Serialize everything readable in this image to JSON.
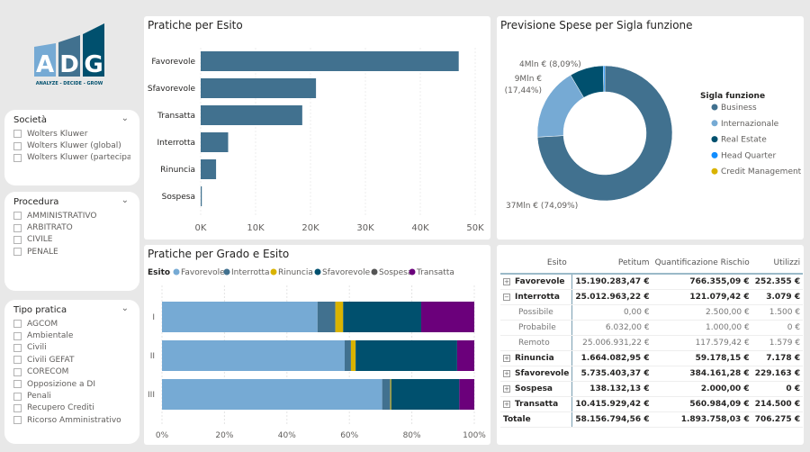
{
  "logo": {
    "letters": [
      "A",
      "D",
      "G"
    ],
    "tagline": "ANALYZE - DECIDE - GROW"
  },
  "slicers": [
    {
      "title": "Società",
      "options": [
        "Wolters Kluwer",
        "Wolters Kluwer (global)",
        "Wolters Kluwer (partecipat..."
      ]
    },
    {
      "title": "Procedura",
      "options": [
        "AMMINISTRATIVO",
        "ARBITRATO",
        "CIVILE",
        "PENALE"
      ]
    },
    {
      "title": "Tipo pratica",
      "options": [
        "AGCOM",
        "Ambientale",
        "Civili",
        "Civili GEFAT",
        "CORECOM",
        "Opposizione a DI",
        "Penali",
        "Recupero Crediti",
        "Ricorso Amministrativo"
      ]
    }
  ],
  "colors": {
    "bar": "#41718f",
    "favorevole": "#76aad4",
    "interrotta": "#41718f",
    "rinuncia": "#d9b300",
    "sfavorevole": "#00506e",
    "sospesa": "#555555",
    "transatta": "#6b007b",
    "business": "#41718f",
    "internazionale": "#76aad4",
    "real_estate": "#00506e",
    "head_quarter": "#118dff",
    "credit_management": "#d9b300"
  },
  "chart_data": [
    {
      "type": "bar",
      "title": "Pratiche per Esito",
      "orientation": "horizontal",
      "categories": [
        "Favorevole",
        "Sfavorevole",
        "Transatta",
        "Interrotta",
        "Rinuncia",
        "Sospesa"
      ],
      "values": [
        47000,
        21000,
        18500,
        5000,
        2800,
        200
      ],
      "xlim": [
        0,
        50000
      ],
      "xticks": [
        "0K",
        "10K",
        "20K",
        "30K",
        "40K",
        "50K"
      ]
    },
    {
      "type": "pie",
      "title": "Previsione Spese per Sigla funzione",
      "donut": true,
      "legend_title": "Sigla funzione",
      "legend": "right",
      "slices": [
        {
          "name": "Business",
          "value": 74.09,
          "label": "37Mln € (74,09%)"
        },
        {
          "name": "Internazionale",
          "value": 17.44,
          "label": "9Mln € (17,44%)"
        },
        {
          "name": "Real Estate",
          "value": 8.09,
          "label": "4Mln € (8,09%)"
        },
        {
          "name": "Head Quarter",
          "value": 0.38,
          "label": ""
        },
        {
          "name": "Credit Management",
          "value": 0,
          "label": ""
        }
      ]
    },
    {
      "type": "bar",
      "title": "Pratiche per Grado e Esito",
      "stacked": "100%",
      "orientation": "horizontal",
      "legend_title": "Esito",
      "legend": "top",
      "categories": [
        "I",
        "II",
        "III"
      ],
      "xticks": [
        "0%",
        "20%",
        "40%",
        "60%",
        "80%",
        "100%"
      ],
      "series": [
        {
          "name": "Favorevole",
          "values": [
            49.8,
            58.5,
            70.5
          ]
        },
        {
          "name": "Interrotta",
          "values": [
            5.7,
            2.0,
            2.6
          ]
        },
        {
          "name": "Rinuncia",
          "values": [
            2.5,
            1.5,
            0.3
          ]
        },
        {
          "name": "Sfavorevole",
          "values": [
            25.0,
            32.5,
            21.8
          ]
        },
        {
          "name": "Sospesa",
          "values": [
            0,
            0,
            0
          ]
        },
        {
          "name": "Transatta",
          "values": [
            17.0,
            5.5,
            4.8
          ]
        }
      ]
    }
  ],
  "table": {
    "headers": [
      "Esito",
      "Petitum",
      "Quantificazione Rischio",
      "Utilizzi"
    ],
    "rows": [
      {
        "type": "b",
        "pm": "+",
        "c": [
          "Favorevole",
          "15.190.283,47 €",
          "766.355,09 €",
          "252.355 €"
        ]
      },
      {
        "type": "b",
        "pm": "−",
        "c": [
          "Interrotta",
          "25.012.963,22 €",
          "121.079,42 €",
          "3.079 €"
        ]
      },
      {
        "type": "s",
        "pm": "",
        "c": [
          "Possibile",
          "0,00 €",
          "2.500,00 €",
          "1.500 €"
        ]
      },
      {
        "type": "s",
        "pm": "",
        "c": [
          "Probabile",
          "6.032,00 €",
          "1.000,00 €",
          "0 €"
        ]
      },
      {
        "type": "s",
        "pm": "",
        "c": [
          "Remoto",
          "25.006.931,22 €",
          "117.579,42 €",
          "1.579 €"
        ]
      },
      {
        "type": "b",
        "pm": "+",
        "c": [
          "Rinuncia",
          "1.664.082,95 €",
          "59.178,15 €",
          "7.178 €"
        ]
      },
      {
        "type": "b",
        "pm": "+",
        "c": [
          "Sfavorevole",
          "5.735.403,37 €",
          "384.161,28 €",
          "229.163 €"
        ]
      },
      {
        "type": "b",
        "pm": "+",
        "c": [
          "Sospesa",
          "138.132,13 €",
          "2.000,00 €",
          "0 €"
        ]
      },
      {
        "type": "b",
        "pm": "+",
        "c": [
          "Transatta",
          "10.415.929,42 €",
          "560.984,09 €",
          "214.500 €"
        ]
      },
      {
        "type": "b",
        "pm": "",
        "c": [
          "Totale",
          "58.156.794,56 €",
          "1.893.758,03 €",
          "706.275 €"
        ]
      }
    ]
  }
}
